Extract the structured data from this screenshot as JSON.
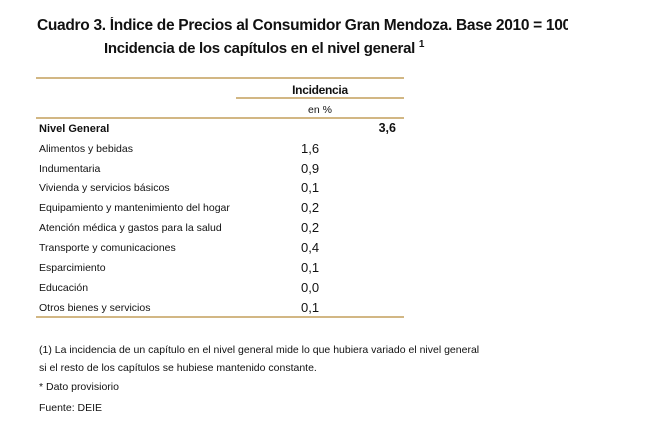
{
  "title": "Cuadro 3. Índice de Precios al Consumidor Gran Mendoza. Base 2010 = 100",
  "subtitle": "Incidencia de los capítulos en el nivel general",
  "subtitle_footnote_mark": "1",
  "table": {
    "column_header": "Incidencia",
    "column_unit": "en %",
    "total": {
      "label": "Nivel General",
      "value": "3,6"
    },
    "rows": [
      {
        "label": "Alimentos y bebidas",
        "value": "1,6"
      },
      {
        "label": "Indumentaria",
        "value": "0,9"
      },
      {
        "label": "Vivienda y servicios básicos",
        "value": "0,1"
      },
      {
        "label": "Equipamiento y mantenimiento del hogar",
        "value": "0,2"
      },
      {
        "label": "Atención médica y gastos para la salud",
        "value": "0,2"
      },
      {
        "label": "Transporte y comunicaciones",
        "value": "0,4"
      },
      {
        "label": "Esparcimiento",
        "value": "0,1"
      },
      {
        "label": "Educación",
        "value": "0,0"
      },
      {
        "label": "Otros bienes y servicios",
        "value": "0,1"
      }
    ]
  },
  "notes": [
    "(1) La incidencia de un capítulo en el nivel general mide lo que hubiera variado el nivel general",
    "si el resto de los capítulos se hubiese mantenido constante.",
    "* Dato provisiorio",
    "Fuente: DEIE"
  ],
  "colors": {
    "rule": "#d2b784"
  }
}
